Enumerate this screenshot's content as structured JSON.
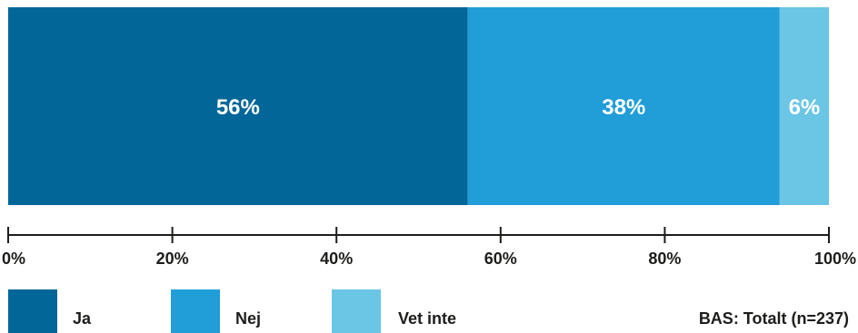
{
  "chart_data": {
    "type": "bar",
    "orientation": "horizontal",
    "stacked": true,
    "series": [
      {
        "name": "Ja",
        "value": 56,
        "label": "56%",
        "color": "#026698"
      },
      {
        "name": "Nej",
        "value": 38,
        "label": "38%",
        "color": "#219dd8"
      },
      {
        "name": "Vet inte",
        "value": 6,
        "label": "6%",
        "color": "#6bc5e5"
      }
    ],
    "xlim": [
      0,
      100
    ],
    "ticks": [
      {
        "value": 0,
        "label": "0%"
      },
      {
        "value": 20,
        "label": "20%"
      },
      {
        "value": 40,
        "label": "40%"
      },
      {
        "value": 60,
        "label": "60%"
      },
      {
        "value": 80,
        "label": "80%"
      },
      {
        "value": 100,
        "label": "100%"
      }
    ],
    "legend_position": "bottom",
    "grid": false
  },
  "legend": {
    "items": [
      {
        "label": "Ja",
        "color": "#026698"
      },
      {
        "label": "Nej",
        "color": "#219dd8"
      },
      {
        "label": "Vet inte",
        "color": "#6bc5e5"
      }
    ]
  },
  "base_note": "BAS: Totalt (n=237)"
}
